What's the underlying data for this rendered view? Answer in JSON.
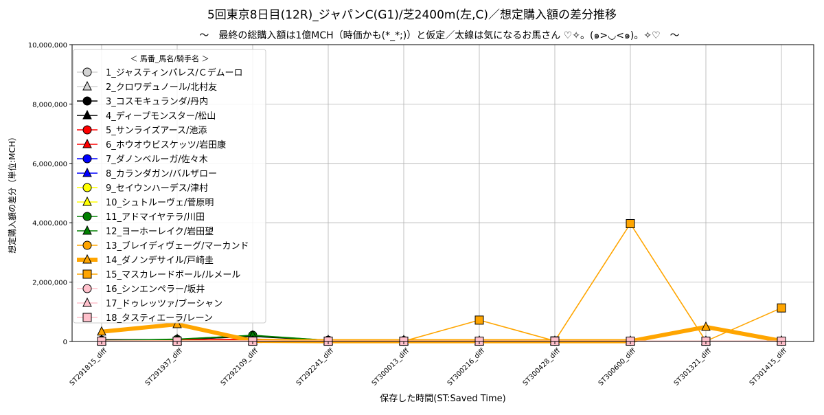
{
  "chart_data": {
    "type": "line",
    "title": "5回東京8日目(12R)_ジャパンC(G1)/芝2400m(左,C)／想定購入額の差分推移",
    "subtitle": "～　最終の総購入額は1億MCH（時価かも(*_*;)）と仮定／太線は気になるお馬さん ♡✧。(๑>◡<๑)。✧♡　～",
    "xlabel": "保存した時間(ST:Saved Time)",
    "ylabel": "想定購入額の差分（単位:MCH）",
    "ylim": [
      0,
      10000000
    ],
    "yticks": [
      0,
      2000000,
      4000000,
      6000000,
      8000000,
      10000000
    ],
    "ytick_labels": [
      "0",
      "2,000,000",
      "4,000,000",
      "6,000,000",
      "8,000,000",
      "10,000,000"
    ],
    "grid": true,
    "legend_title": "＜ 馬番_馬名/騎手名 ＞",
    "legend_placement": "upper-left",
    "categories": [
      "ST291815_diff",
      "ST291937_diff",
      "ST292109_diff",
      "ST292241_diff",
      "ST300013_diff",
      "ST300216_diff",
      "ST300428_diff",
      "ST300600_diff",
      "ST301321_diff",
      "ST301415_diff"
    ],
    "series": [
      {
        "name": "1_ジャスティンパレス/Ｃデムーロ",
        "color": "#d3d3d3",
        "marker": "circle",
        "bold": false,
        "values": [
          20000,
          30000,
          30000,
          10000,
          10000,
          10000,
          10000,
          10000,
          10000,
          10000
        ]
      },
      {
        "name": "2_クロワデュノール/北村友",
        "color": "#d3d3d3",
        "marker": "triangle",
        "bold": false,
        "values": [
          20000,
          30000,
          30000,
          10000,
          10000,
          10000,
          10000,
          10000,
          10000,
          10000
        ]
      },
      {
        "name": "3_コスモキュランダ/丹内",
        "color": "#000000",
        "marker": "circle",
        "bold": false,
        "values": [
          40000,
          70000,
          170000,
          40000,
          30000,
          10000,
          10000,
          10000,
          10000,
          10000
        ]
      },
      {
        "name": "4_ディープモンスター/松山",
        "color": "#000000",
        "marker": "triangle",
        "bold": false,
        "values": [
          60000,
          60000,
          180000,
          40000,
          30000,
          10000,
          10000,
          10000,
          10000,
          10000
        ]
      },
      {
        "name": "5_サンライズアース/池添",
        "color": "#ff0000",
        "marker": "circle",
        "bold": false,
        "values": [
          40000,
          50000,
          80000,
          30000,
          20000,
          10000,
          10000,
          10000,
          10000,
          10000
        ]
      },
      {
        "name": "6_ホウオウビスケッツ/岩田康",
        "color": "#ff0000",
        "marker": "triangle",
        "bold": false,
        "values": [
          30000,
          40000,
          60000,
          20000,
          10000,
          10000,
          10000,
          10000,
          10000,
          10000
        ]
      },
      {
        "name": "7_ダノンベルーガ/佐々木",
        "color": "#0000ff",
        "marker": "circle",
        "bold": false,
        "values": [
          10000,
          20000,
          20000,
          10000,
          10000,
          10000,
          10000,
          10000,
          10000,
          10000
        ]
      },
      {
        "name": "8_カランダガン/バルザロー",
        "color": "#0000ff",
        "marker": "triangle",
        "bold": false,
        "values": [
          10000,
          20000,
          20000,
          10000,
          10000,
          10000,
          10000,
          10000,
          10000,
          10000
        ]
      },
      {
        "name": "9_セイウンハーデス/津村",
        "color": "#ffff00",
        "marker": "circle",
        "bold": false,
        "values": [
          10000,
          10000,
          10000,
          10000,
          10000,
          10000,
          10000,
          10000,
          10000,
          10000
        ]
      },
      {
        "name": "10_シュトルーヴェ/菅原明",
        "color": "#ffff00",
        "marker": "triangle",
        "bold": false,
        "values": [
          10000,
          10000,
          10000,
          10000,
          10000,
          10000,
          10000,
          10000,
          10000,
          10000
        ]
      },
      {
        "name": "11_アドマイヤテラ/川田",
        "color": "#008000",
        "marker": "circle",
        "bold": false,
        "values": [
          30000,
          70000,
          210000,
          40000,
          30000,
          10000,
          10000,
          10000,
          10000,
          10000
        ]
      },
      {
        "name": "12_ヨーホーレイク/岩田望",
        "color": "#008000",
        "marker": "triangle",
        "bold": false,
        "values": [
          30000,
          80000,
          200000,
          40000,
          40000,
          10000,
          10000,
          10000,
          10000,
          10000
        ]
      },
      {
        "name": "13_ブレイディヴェーグ/マーカンド",
        "color": "#ffa500",
        "marker": "circle",
        "bold": false,
        "values": [
          20000,
          30000,
          30000,
          10000,
          10000,
          10000,
          10000,
          10000,
          10000,
          10000
        ]
      },
      {
        "name": "14_ダノンデサイル/戸崎圭",
        "color": "#ffa500",
        "marker": "triangle",
        "bold": true,
        "values": [
          330000,
          580000,
          20000,
          10000,
          10000,
          10000,
          10000,
          10000,
          490000,
          20000
        ]
      },
      {
        "name": "15_マスカレードボール/ルメール",
        "color": "#ffa500",
        "marker": "square",
        "bold": false,
        "values": [
          10000,
          10000,
          10000,
          10000,
          10000,
          720000,
          20000,
          3970000,
          10000,
          1130000
        ]
      },
      {
        "name": "16_シンエンペラー/坂井",
        "color": "#ffc0cb",
        "marker": "circle",
        "bold": false,
        "values": [
          20000,
          20000,
          20000,
          10000,
          10000,
          10000,
          10000,
          10000,
          10000,
          10000
        ]
      },
      {
        "name": "17_ドゥレッツァ/ブーシャン",
        "color": "#ffc0cb",
        "marker": "triangle",
        "bold": false,
        "values": [
          20000,
          20000,
          20000,
          10000,
          10000,
          10000,
          10000,
          10000,
          10000,
          10000
        ]
      },
      {
        "name": "18_タスティエーラ/レーン",
        "color": "#ffc0cb",
        "marker": "square",
        "bold": false,
        "values": [
          10000,
          10000,
          10000,
          10000,
          10000,
          10000,
          10000,
          10000,
          10000,
          10000
        ]
      }
    ]
  }
}
